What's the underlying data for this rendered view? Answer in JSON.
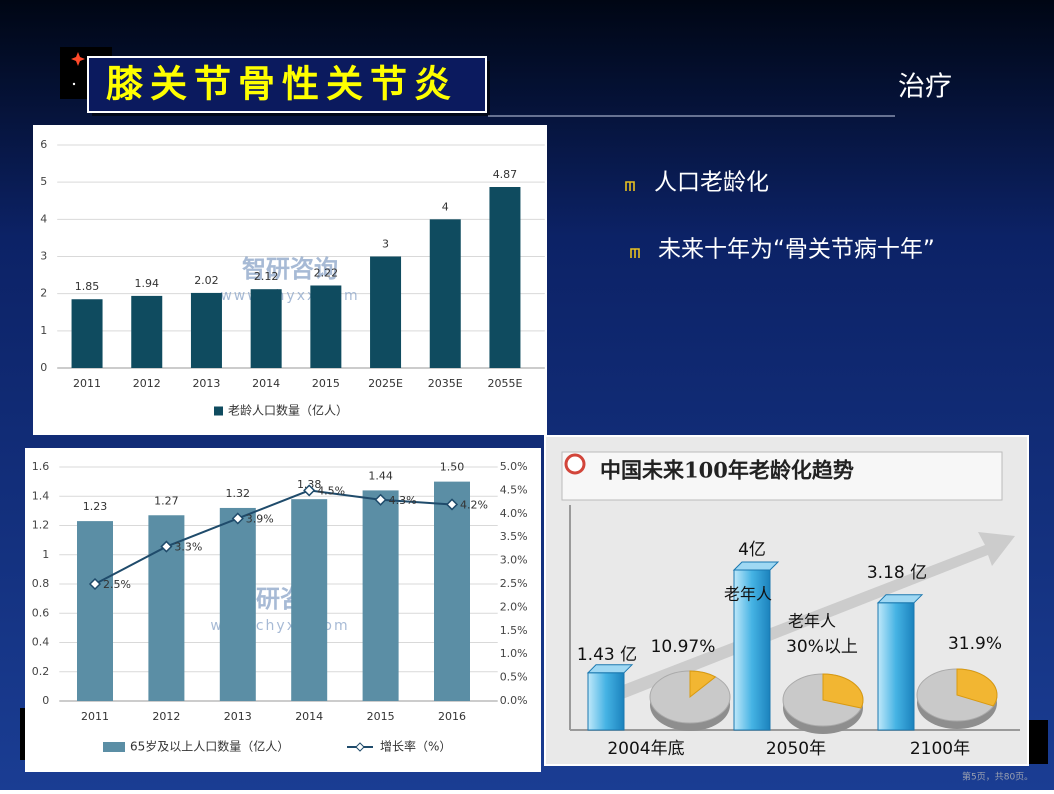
{
  "slide": {
    "title": "膝关节骨性关节炎",
    "heading": "治疗",
    "bullets": [
      "人口老龄化",
      "未来十年为“骨关节病十年”"
    ],
    "footer": "第5页，共80页。"
  },
  "chart_data": [
    {
      "type": "bar",
      "categories": [
        "2011",
        "2012",
        "2013",
        "2014",
        "2015",
        "2025E",
        "2035E",
        "2055E"
      ],
      "series": [
        {
          "name": "老龄人口数量（亿人）",
          "color": "#0f4b5f",
          "values": [
            1.85,
            1.94,
            2.02,
            2.12,
            2.22,
            3,
            4,
            4.87
          ]
        }
      ],
      "ylim": [
        0,
        6
      ],
      "yticks": [
        0,
        1,
        2,
        3,
        4,
        5,
        6
      ],
      "grid": true,
      "legend": "bottom",
      "watermark": [
        "智研咨询",
        "www.chyxx.com"
      ]
    },
    {
      "type": "combo",
      "categories": [
        "2011",
        "2012",
        "2013",
        "2014",
        "2015",
        "2016"
      ],
      "series": [
        {
          "name": "65岁及以上人口数量（亿人）",
          "color": "#5b8ea5",
          "values": [
            1.23,
            1.27,
            1.32,
            1.38,
            1.44,
            1.5
          ],
          "value_labels": [
            "1.23",
            "1.27",
            "1.32",
            "1.38",
            "1.44",
            "1.50"
          ]
        },
        {
          "name": "增长率（%）",
          "color": "#1f4b6b",
          "axis": "y2",
          "values": [
            2.5,
            3.3,
            3.9,
            4.5,
            4.3,
            4.2
          ],
          "value_labels": [
            "2.5%",
            "3.3%",
            "3.9%",
            "4.5%",
            "4.3%",
            "4.2%"
          ]
        }
      ],
      "ylim": [
        0,
        1.6
      ],
      "yticks": [
        0,
        0.2,
        0.4,
        0.6,
        0.8,
        1,
        1.2,
        1.4,
        1.6
      ],
      "y2lim": [
        0,
        5
      ],
      "y2ticks": [
        {
          "value": 0,
          "label": "0.0%"
        },
        {
          "value": 0.5,
          "label": "0.5%"
        },
        {
          "value": 1,
          "label": "1.0%"
        },
        {
          "value": 1.5,
          "label": "1.5%"
        },
        {
          "value": 2,
          "label": "2.0%"
        },
        {
          "value": 2.5,
          "label": "2.5%"
        },
        {
          "value": 3,
          "label": "3.0%"
        },
        {
          "value": 3.5,
          "label": "3.5%"
        },
        {
          "value": 4,
          "label": "4.0%"
        },
        {
          "value": 4.5,
          "label": "4.5%"
        },
        {
          "value": 5,
          "label": "5.0%"
        }
      ],
      "grid": true,
      "legend": "bottom",
      "watermark": [
        "智研咨询",
        "www.chyxx.com"
      ]
    },
    {
      "type": "infographic",
      "title": "中国未来100年老龄化趋势",
      "categories": [
        "2004年底",
        "2050年",
        "2100年"
      ],
      "values": [
        1.43,
        4,
        3.18
      ],
      "value_labels": [
        "1.43 亿",
        "4亿",
        "3.18 亿"
      ],
      "color": "#45b3e4",
      "pies": {
        "values": [
          10.97,
          30,
          31.9
        ],
        "value_labels": [
          "10.97%",
          "30%以上",
          "31.9%"
        ],
        "color": "#f2b632"
      },
      "annotations": [
        "老年人",
        "老年人"
      ]
    }
  ]
}
